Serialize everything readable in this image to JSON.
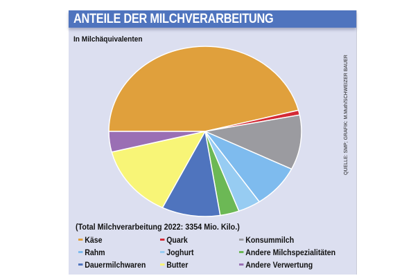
{
  "title": "ANTEILE DER MILCHVERARBEITUNG",
  "subtitle": "In Milchäquivalenten",
  "total_note": "(Total Milchverarbeitung 2022: 3354 Mio. Kilo.)",
  "source": "QUELLE: SMP; GRAFIK: M.Muth/SCHWEIZER BAUER",
  "colors": {
    "title_bar": "#4f74be",
    "background": "#dcdff0"
  },
  "chart_data": {
    "type": "pie",
    "title": "ANTEILE DER MILCHVERARBEITUNG",
    "unit": "%",
    "start": "9 o'clock, clockwise",
    "slices": [
      {
        "label": "Käse",
        "value": 46.0,
        "color": "#e0a03c"
      },
      {
        "label": "Quark",
        "value": 0.9,
        "color": "#d42a35"
      },
      {
        "label": "Konsummilch",
        "value": 10.4,
        "color": "#9b9ba0"
      },
      {
        "label": "Rahm",
        "value": 8.2,
        "color": "#7ebbee"
      },
      {
        "label": "Joghurt",
        "value": 3.8,
        "color": "#97ccf2"
      },
      {
        "label": "Andere Milchspezialitäten",
        "value": 3.2,
        "color": "#6cb855"
      },
      {
        "label": "Dauermilchwaren",
        "value": 9.8,
        "color": "#4f74be"
      },
      {
        "label": "Butter",
        "value": 13.8,
        "color": "#f8f577"
      },
      {
        "label": "Andere Verwertung",
        "value": 3.9,
        "color": "#9a6fb4"
      }
    ],
    "legend": {
      "placement": "bottom",
      "order": [
        "Käse",
        "Quark",
        "Konsummilch",
        "Rahm",
        "Joghurt",
        "Andere Milchspezialitäten",
        "Dauermilchwaren",
        "Butter",
        "Andere Verwertung"
      ]
    }
  }
}
